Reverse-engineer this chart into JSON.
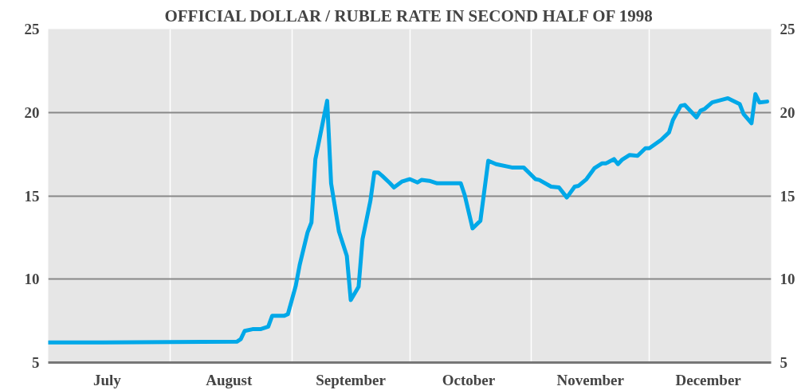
{
  "chart_data": {
    "type": "line",
    "title": "OFFICIAL DOLLAR / RUBLE RATE IN SECOND HALF OF 1998",
    "x": [
      "1998-07-01",
      "1998-07-15",
      "1998-08-01",
      "1998-08-18",
      "1998-08-19",
      "1998-08-20",
      "1998-08-22",
      "1998-08-24",
      "1998-08-26",
      "1998-08-27",
      "1998-08-30",
      "1998-08-31",
      "1998-09-02",
      "1998-09-03",
      "1998-09-05",
      "1998-09-06",
      "1998-09-07",
      "1998-09-10",
      "1998-09-11",
      "1998-09-13",
      "1998-09-15",
      "1998-09-16",
      "1998-09-18",
      "1998-09-19",
      "1998-09-21",
      "1998-09-22",
      "1998-09-23",
      "1998-09-24",
      "1998-09-26",
      "1998-09-27",
      "1998-09-29",
      "1998-10-01",
      "1998-10-03",
      "1998-10-04",
      "1998-10-06",
      "1998-10-08",
      "1998-10-12",
      "1998-10-14",
      "1998-10-15",
      "1998-10-17",
      "1998-10-19",
      "1998-10-21",
      "1998-10-23",
      "1998-10-27",
      "1998-10-30",
      "1998-11-02",
      "1998-11-03",
      "1998-11-06",
      "1998-11-08",
      "1998-11-10",
      "1998-11-12",
      "1998-11-13",
      "1998-11-15",
      "1998-11-17",
      "1998-11-19",
      "1998-11-20",
      "1998-11-22",
      "1998-11-23",
      "1998-11-24",
      "1998-11-26",
      "1998-11-28",
      "1998-11-30",
      "1998-12-01",
      "1998-12-04",
      "1998-12-06",
      "1998-12-07",
      "1998-12-09",
      "1998-12-10",
      "1998-12-13",
      "1998-12-14",
      "1998-12-15",
      "1998-12-17",
      "1998-12-21",
      "1998-12-24",
      "1998-12-25",
      "1998-12-27",
      "1998-12-28",
      "1998-12-29",
      "1998-12-31"
    ],
    "series": [
      {
        "color": "#00a8e8",
        "values": [
          6.2,
          6.2,
          6.23,
          6.25,
          6.4,
          6.9,
          7.0,
          7.0,
          7.15,
          7.8,
          7.8,
          7.9,
          9.6,
          10.85,
          12.8,
          13.4,
          17.2,
          20.7,
          15.75,
          12.85,
          11.4,
          8.75,
          9.55,
          12.4,
          14.7,
          16.4,
          16.4,
          16.2,
          15.75,
          15.5,
          15.85,
          16.0,
          15.8,
          15.95,
          15.9,
          15.75,
          15.75,
          15.75,
          15.05,
          13.05,
          13.5,
          17.1,
          16.9,
          16.7,
          16.7,
          16.0,
          15.95,
          15.55,
          15.5,
          14.9,
          15.55,
          15.6,
          16.0,
          16.65,
          16.95,
          16.95,
          17.2,
          16.9,
          17.15,
          17.45,
          17.4,
          17.85,
          17.85,
          18.35,
          18.8,
          19.55,
          20.4,
          20.45,
          19.7,
          20.1,
          20.2,
          20.6,
          20.85,
          20.5,
          19.9,
          19.35,
          21.1,
          20.6,
          20.65
        ]
      }
    ],
    "xlim": [
      "1998-07-01",
      "1999-01-01"
    ],
    "xticks": [
      {
        "value": "1998-07-16",
        "label": "July"
      },
      {
        "value": "1998-08-01",
        "label": null
      },
      {
        "value": "1998-08-16",
        "label": "August"
      },
      {
        "value": "1998-09-01",
        "label": null
      },
      {
        "value": "1998-09-16",
        "label": "September"
      },
      {
        "value": "1998-10-01",
        "label": null
      },
      {
        "value": "1998-10-16",
        "label": "October"
      },
      {
        "value": "1998-11-01",
        "label": null
      },
      {
        "value": "1998-11-16",
        "label": "November"
      },
      {
        "value": "1998-12-01",
        "label": null
      },
      {
        "value": "1998-12-16",
        "label": "December"
      }
    ],
    "ylim": [
      5,
      25
    ],
    "yticks": [
      5,
      10,
      15,
      20,
      25
    ],
    "y2lim": [
      5,
      25
    ],
    "y2ticks": [
      5,
      10,
      15,
      20,
      25
    ],
    "grid": true,
    "line_style": "solid",
    "marker": "none"
  }
}
